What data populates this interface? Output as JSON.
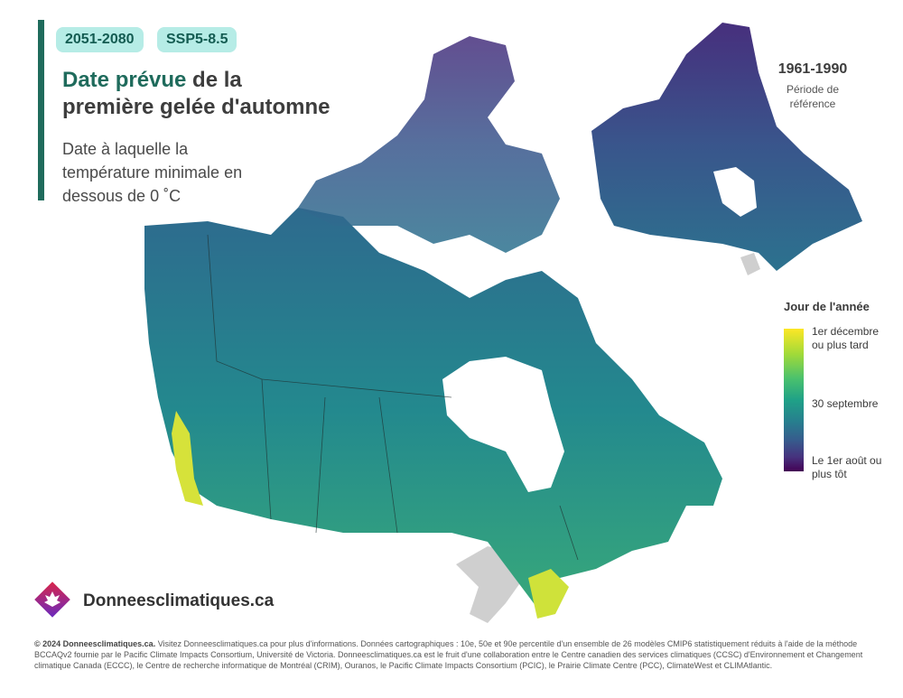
{
  "header": {
    "period_badge": "2051-2080",
    "scenario_badge": "SSP5-8.5",
    "title_highlight": "Date prévue",
    "title_rest_1": " de la",
    "title_line2": "première gelée d'automne",
    "subtitle": "Date à laquelle la température minimale en dessous de 0 ˚C"
  },
  "reference_map": {
    "title": "1961-1990",
    "subtitle": "Période de référence"
  },
  "legend": {
    "title": "Jour de l'année",
    "top_label": "1er décembre ou plus tard",
    "mid_label": "30 septembre",
    "bottom_label": "Le 1er août ou plus tôt"
  },
  "footer": {
    "brand": "Donneesclimatiques.ca",
    "credits_bold": "© 2024 Donneesclimatiques.ca.",
    "credits_text": " Visitez Donneesclimatiques.ca pour plus d'informations. Données cartographiques : 10e, 50e et 90e percentile d'un ensemble de 26 modèles CMIP6 statistiquement réduits à l'aide de la méthode BCCAQv2 fournie par le Pacific Climate Impacts Consortium, Université de Victoria. Donneesclimatiques.ca est le fruit d'une collaboration entre le Centre canadien des services climatiques (CCSC) d'Environnement et Changement climatique Canada (ECCC), le Centre de recherche informatique de Montréal (CRIM), Ouranos, le Pacific Climate Impacts Consortium (PCIC), le Prairie Climate Centre (PCC), ClimateWest et CLIMAtlantic."
  },
  "colors": {
    "accent": "#1f6b5c",
    "badge_bg": "#b6ece6",
    "badge_text": "#145c52"
  }
}
